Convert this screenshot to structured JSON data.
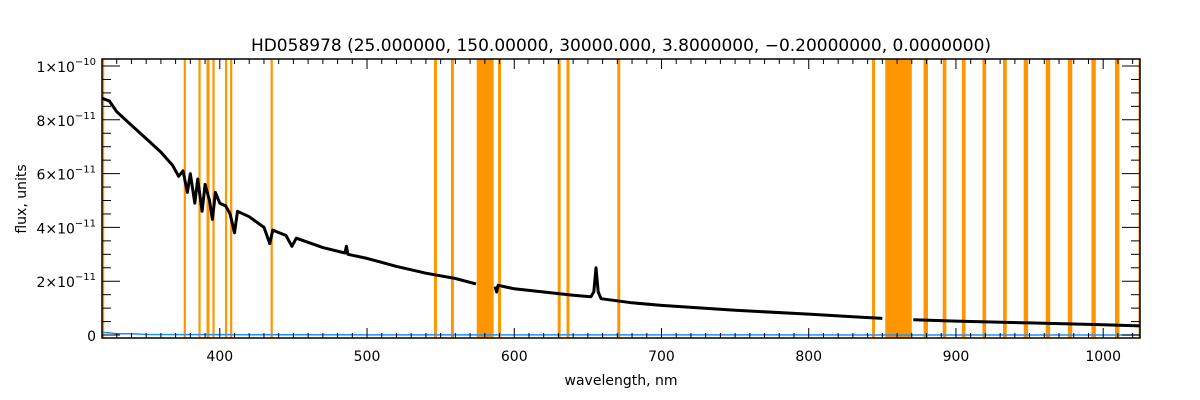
{
  "chart_data": {
    "type": "line",
    "title": "HD058978   (25.000000, 150.00000, 30000.000, 3.8000000, −0.20000000, 0.0000000)",
    "xlabel": "wavelength, nm",
    "ylabel": "flux, units",
    "xlim": [
      320,
      1025
    ],
    "ylim": [
      -1.1e-12,
      1.026e-10
    ],
    "x_ticks": [
      400,
      500,
      600,
      700,
      800,
      900,
      1000
    ],
    "x_tick_labels": [
      "400",
      "500",
      "600",
      "700",
      "800",
      "900",
      "1000"
    ],
    "x_minor_step": 10,
    "y_ticks": [
      0,
      2e-11,
      4e-11,
      6e-11,
      8e-11,
      1e-10
    ],
    "y_tick_labels": [
      {
        "mantissa": "0",
        "exp": ""
      },
      {
        "mantissa": "2×10",
        "exp": "−11"
      },
      {
        "mantissa": "4×10",
        "exp": "−11"
      },
      {
        "mantissa": "6×10",
        "exp": "−11"
      },
      {
        "mantissa": "8×10",
        "exp": "−11"
      },
      {
        "mantissa": "1×10",
        "exp": "−10"
      }
    ],
    "y_minor_step": 5e-12,
    "grid": false,
    "colors": {
      "flux": "#000000",
      "error": "#1e8fff",
      "masked_band": "#ff9600"
    },
    "masked_bands": [
      [
        320,
        321.5
      ],
      [
        375.5,
        377
      ],
      [
        385.5,
        387
      ],
      [
        391,
        393
      ],
      [
        395,
        396.5
      ],
      [
        403.5,
        405
      ],
      [
        407,
        408.5
      ],
      [
        434.5,
        436
      ],
      [
        545.5,
        547.5
      ],
      [
        557,
        559
      ],
      [
        574.5,
        586
      ],
      [
        589,
        591
      ],
      [
        629.5,
        631.5
      ],
      [
        635.5,
        637.5
      ],
      [
        670,
        672
      ],
      [
        843,
        845
      ],
      [
        852,
        870
      ],
      [
        878,
        881
      ],
      [
        891,
        893.5
      ],
      [
        904,
        906.5
      ],
      [
        918,
        920.5
      ],
      [
        932,
        934.5
      ],
      [
        946,
        949
      ],
      [
        961,
        964
      ],
      [
        976,
        979
      ],
      [
        992,
        995
      ],
      [
        1008,
        1011
      ],
      [
        1024,
        1025
      ]
    ],
    "series": [
      {
        "id": "flux",
        "x": [
          320,
          325,
          330,
          340,
          350,
          360,
          368,
          372,
          375,
          378,
          380,
          383,
          385,
          388,
          390,
          393,
          395,
          397,
          400,
          404,
          407,
          410,
          412,
          420,
          430,
          434,
          436,
          445,
          449,
          452,
          470,
          485,
          486,
          487,
          500,
          520,
          540,
          560,
          574,
          574.5,
          586,
          587,
          588,
          589,
          600,
          620,
          640,
          652,
          654,
          655.5,
          657,
          659,
          680,
          700,
          750,
          800,
          830,
          850,
          851,
          870,
          871,
          900,
          950,
          1000,
          1025
        ],
        "y": [
          8.8e-11,
          8.7e-11,
          8.3e-11,
          7.8e-11,
          7.3e-11,
          6.8e-11,
          6.3e-11,
          5.9e-11,
          6.1e-11,
          5.3e-11,
          6e-11,
          4.9e-11,
          5.8e-11,
          4.6e-11,
          5.6e-11,
          5e-11,
          4.3e-11,
          5.3e-11,
          4.9e-11,
          4.8e-11,
          4.5e-11,
          3.8e-11,
          4.6e-11,
          4.4e-11,
          4e-11,
          3.4e-11,
          3.9e-11,
          3.7e-11,
          3.3e-11,
          3.6e-11,
          3.25e-11,
          3.05e-11,
          3.3e-11,
          3e-11,
          2.85e-11,
          2.55e-11,
          2.3e-11,
          2.1e-11,
          1.9e-11,
          null,
          null,
          1.8e-11,
          1.6e-11,
          1.85e-11,
          1.72e-11,
          1.6e-11,
          1.48e-11,
          1.42e-11,
          1.6e-11,
          2.5e-11,
          1.6e-11,
          1.35e-11,
          1.2e-11,
          1.1e-11,
          9.2e-12,
          7.8e-12,
          6.8e-12,
          6.2e-12,
          null,
          null,
          5.7e-12,
          5.2e-12,
          4.5e-12,
          3.8e-12,
          3.4e-12
        ]
      },
      {
        "id": "error",
        "x": [
          320,
          325,
          330,
          340,
          350,
          400,
          450,
          1025
        ],
        "y": [
          1e-12,
          8e-13,
          5e-13,
          5e-13,
          2e-13,
          1.5e-13,
          1e-13,
          0
        ]
      }
    ]
  }
}
